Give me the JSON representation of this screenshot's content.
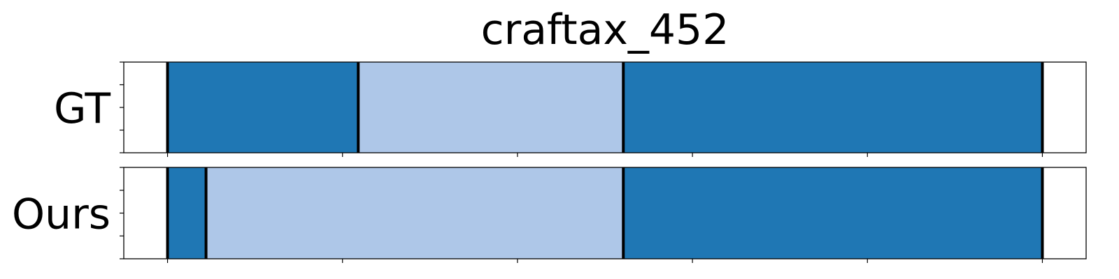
{
  "chart_data": {
    "type": "segmentation",
    "title": "craftax_452",
    "x_range": [
      -0.05,
      1.05
    ],
    "x_ticks": [
      0,
      0.2,
      0.4,
      0.6,
      0.8,
      1.0
    ],
    "rows": [
      {
        "label": "GT",
        "segments": [
          {
            "start": 0.0,
            "end": 0.218,
            "color": "#1f77b4"
          },
          {
            "start": 0.218,
            "end": 0.521,
            "color": "#aec7e8"
          },
          {
            "start": 0.521,
            "end": 1.0,
            "color": "#1f77b4"
          }
        ],
        "boundaries": [
          0.0,
          0.218,
          0.521,
          1.0
        ]
      },
      {
        "label": "Ours",
        "segments": [
          {
            "start": 0.0,
            "end": 0.044,
            "color": "#1f77b4"
          },
          {
            "start": 0.044,
            "end": 0.521,
            "color": "#aec7e8"
          },
          {
            "start": 0.521,
            "end": 1.0,
            "color": "#1f77b4"
          }
        ],
        "boundaries": [
          0.0,
          0.044,
          0.521,
          1.0
        ]
      }
    ]
  }
}
